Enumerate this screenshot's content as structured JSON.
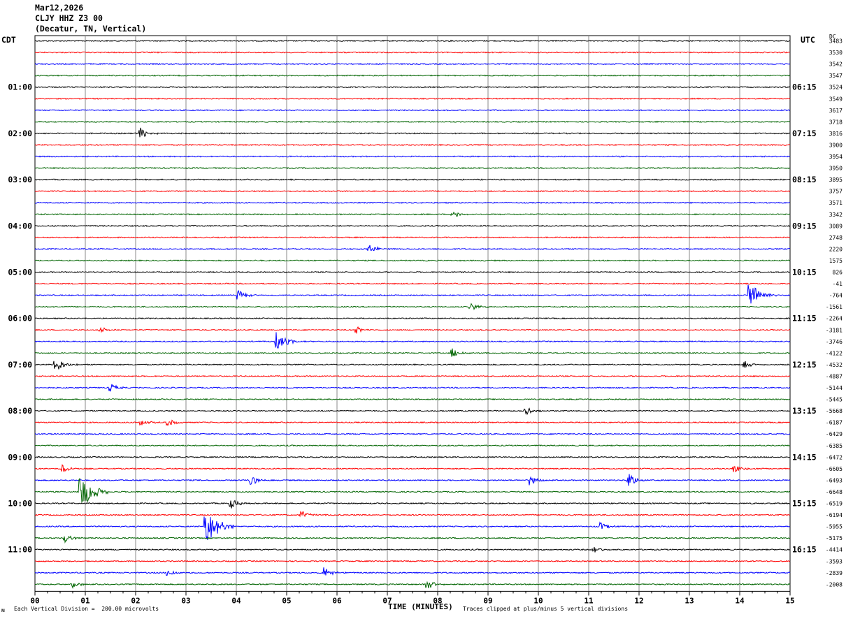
{
  "header": {
    "date": "Mar12,2026",
    "station": "CLJY HHZ Z3 00",
    "location": "(Decatur, TN, Vertical)"
  },
  "left_tz": "CDT",
  "right_tz": "UTC",
  "dc_label": "DC",
  "footer": {
    "scale": "Each Vertical Division =  200.00 microvolts",
    "xlabel": "TIME (MINUTES)",
    "clip": "Traces clipped at plus/minus 5 vertical divisions",
    "corner": "ᴍ"
  },
  "chart_data": {
    "type": "line",
    "title": "CLJY HHZ Z3 00 (Decatur, TN, Vertical)",
    "xlabel": "TIME (MINUTES)",
    "xlim": [
      0,
      15
    ],
    "x_ticks": [
      "00",
      "01",
      "02",
      "03",
      "04",
      "05",
      "06",
      "07",
      "08",
      "09",
      "10",
      "11",
      "12",
      "13",
      "14",
      "15"
    ],
    "trace_colors": [
      "#000000",
      "#ff0000",
      "#0000ff",
      "#006400"
    ],
    "left_hour_labels": [
      "01:00",
      "02:00",
      "03:00",
      "04:00",
      "05:00",
      "06:00",
      "07:00",
      "08:00",
      "09:00",
      "10:00",
      "11:00"
    ],
    "right_hour_labels": [
      "06:15",
      "07:15",
      "08:15",
      "09:15",
      "10:15",
      "11:15",
      "12:15",
      "13:15",
      "14:15",
      "15:15",
      "16:15"
    ],
    "dc_offsets": [
      "3483",
      "3530",
      "3542",
      "3547",
      "3524",
      "3549",
      "3617",
      "3718",
      "3816",
      "3900",
      "3954",
      "3950",
      "3895",
      "3757",
      "3571",
      "3342",
      "3089",
      "2748",
      "2220",
      "1575",
      "826",
      "-41",
      "-764",
      "-1561",
      "-2264",
      "-3181",
      "-3746",
      "-4122",
      "-4532",
      "-4887",
      "-5144",
      "-5445",
      "-5668",
      "-6187",
      "-6429",
      "-6385",
      "-6472",
      "-6605",
      "-6493",
      "-6648",
      "-6519",
      "-6194",
      "-5955",
      "-5175",
      "-4414",
      "-3593",
      "-2839",
      "-2008"
    ],
    "events": [
      {
        "row": 8,
        "minute": 2.1,
        "amp": 9
      },
      {
        "row": 15,
        "minute": 8.3,
        "amp": 6
      },
      {
        "row": 18,
        "minute": 6.65,
        "amp": 7
      },
      {
        "row": 22,
        "minute": 14.2,
        "amp": 20
      },
      {
        "row": 22,
        "minute": 4.05,
        "amp": 7
      },
      {
        "row": 23,
        "minute": 8.65,
        "amp": 6
      },
      {
        "row": 25,
        "minute": 1.3,
        "amp": 5
      },
      {
        "row": 25,
        "minute": 6.4,
        "amp": 5
      },
      {
        "row": 26,
        "minute": 4.8,
        "amp": 14
      },
      {
        "row": 27,
        "minute": 8.3,
        "amp": 8
      },
      {
        "row": 28,
        "minute": 0.4,
        "amp": 12
      },
      {
        "row": 28,
        "minute": 14.1,
        "amp": 5
      },
      {
        "row": 30,
        "minute": 1.5,
        "amp": 6
      },
      {
        "row": 32,
        "minute": 9.75,
        "amp": 7
      },
      {
        "row": 33,
        "minute": 2.1,
        "amp": 7
      },
      {
        "row": 33,
        "minute": 2.65,
        "amp": 6
      },
      {
        "row": 37,
        "minute": 0.55,
        "amp": 7
      },
      {
        "row": 37,
        "minute": 13.9,
        "amp": 6
      },
      {
        "row": 38,
        "minute": 4.3,
        "amp": 7
      },
      {
        "row": 38,
        "minute": 11.8,
        "amp": 10
      },
      {
        "row": 38,
        "minute": 9.85,
        "amp": 7
      },
      {
        "row": 39,
        "minute": 0.9,
        "amp": 26
      },
      {
        "row": 40,
        "minute": 3.9,
        "amp": 7
      },
      {
        "row": 41,
        "minute": 5.3,
        "amp": 6
      },
      {
        "row": 42,
        "minute": 3.4,
        "amp": 26
      },
      {
        "row": 42,
        "minute": 11.25,
        "amp": 6
      },
      {
        "row": 43,
        "minute": 0.6,
        "amp": 6
      },
      {
        "row": 44,
        "minute": 11.1,
        "amp": 6
      },
      {
        "row": 46,
        "minute": 5.75,
        "amp": 8
      },
      {
        "row": 46,
        "minute": 2.65,
        "amp": 6
      },
      {
        "row": 47,
        "minute": 7.8,
        "amp": 7
      },
      {
        "row": 47,
        "minute": 0.75,
        "amp": 5
      }
    ]
  }
}
